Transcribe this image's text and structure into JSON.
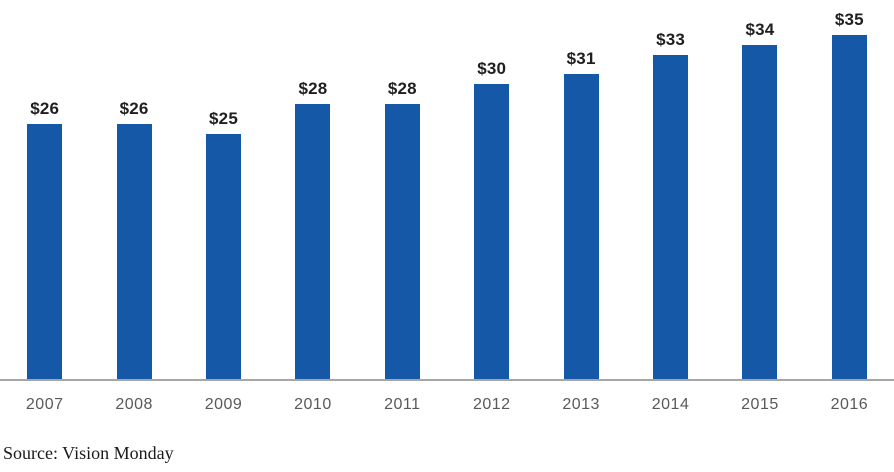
{
  "chart_data": {
    "type": "bar",
    "title": "",
    "categories": [
      "2007",
      "2008",
      "2009",
      "2010",
      "2011",
      "2012",
      "2013",
      "2014",
      "2015",
      "2016"
    ],
    "values": [
      26,
      26,
      25,
      28,
      28,
      30,
      31,
      33,
      34,
      35
    ],
    "value_labels": [
      "$26",
      "$26",
      "$25",
      "$28",
      "$28",
      "$30",
      "$31",
      "$33",
      "$34",
      "$35"
    ],
    "bar_color": "#1658A8",
    "axis_line_color": "#A6A6A6",
    "value_label_color": "#1f1f1f",
    "tick_label_color": "#595959",
    "ylim": [
      0,
      35
    ],
    "grid": false,
    "legend": false,
    "xlabel": "",
    "ylabel": "",
    "source_note": "Source: Vision Monday"
  }
}
